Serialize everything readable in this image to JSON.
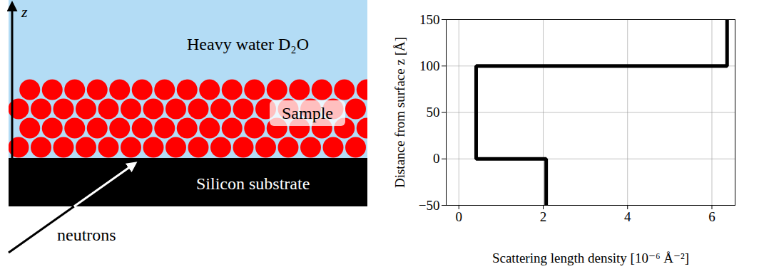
{
  "diagram": {
    "axis_label": "z",
    "layers": [
      {
        "label": "Heavy water D₂O"
      },
      {
        "label": "Sample"
      },
      {
        "label": "Silicon substrate"
      }
    ],
    "beam_label": "neutrons"
  },
  "chart_data": {
    "type": "line",
    "x": [
      2.07,
      2.07,
      0.41,
      0.41,
      6.36,
      6.36
    ],
    "values": [
      -50,
      0,
      0,
      100,
      100,
      150
    ],
    "color": "#000000",
    "xlabel": "Scattering length density [10⁻⁶ Å⁻²]",
    "ylabel": "Distance from surface z [Å]",
    "xlim": [
      -0.3,
      6.55
    ],
    "xticks": [
      0,
      2,
      4,
      6
    ],
    "ylim": [
      -50,
      150
    ],
    "yticks": [
      {
        "value": -50,
        "label": "−50"
      },
      0,
      50,
      100,
      150
    ],
    "grid": true
  }
}
